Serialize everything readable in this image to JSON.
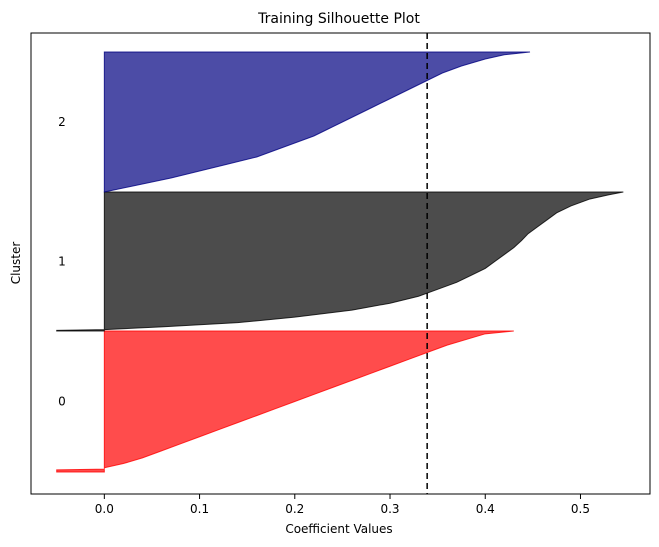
{
  "chart_data": {
    "type": "area",
    "title": "Training Silhouette Plot",
    "xlabel": "Coefficient Values",
    "ylabel": "Cluster",
    "xlim": [
      -0.077,
      0.573
    ],
    "xticks": [
      "0.0",
      "0.1",
      "0.2",
      "0.3",
      "0.4",
      "0.5"
    ],
    "xtick_values": [
      0.0,
      0.1,
      0.2,
      0.3,
      0.4,
      0.5
    ],
    "grid": false,
    "mean_line": {
      "value": 0.339,
      "style": "dashed",
      "color": "#000000"
    },
    "clusters": [
      {
        "label": "0",
        "color": "#ff0000",
        "min": -0.05,
        "max": 0.43,
        "profile": [
          [
            0.0,
            0.43
          ],
          [
            0.02,
            0.4
          ],
          [
            0.05,
            0.385
          ],
          [
            0.1,
            0.36
          ],
          [
            0.15,
            0.34
          ],
          [
            0.2,
            0.32
          ],
          [
            0.25,
            0.3
          ],
          [
            0.3,
            0.28
          ],
          [
            0.35,
            0.26
          ],
          [
            0.4,
            0.24
          ],
          [
            0.45,
            0.22
          ],
          [
            0.5,
            0.2
          ],
          [
            0.55,
            0.18
          ],
          [
            0.6,
            0.16
          ],
          [
            0.65,
            0.14
          ],
          [
            0.7,
            0.12
          ],
          [
            0.75,
            0.1
          ],
          [
            0.8,
            0.08
          ],
          [
            0.85,
            0.06
          ],
          [
            0.9,
            0.04
          ],
          [
            0.94,
            0.02
          ],
          [
            0.97,
            0.0
          ],
          [
            0.98,
            0.0
          ],
          [
            0.985,
            -0.05
          ],
          [
            1.0,
            -0.05
          ]
        ]
      },
      {
        "label": "1",
        "color": "#000000",
        "min": -0.05,
        "max": 0.545,
        "profile": [
          [
            0.0,
            0.545
          ],
          [
            0.02,
            0.53
          ],
          [
            0.05,
            0.51
          ],
          [
            0.1,
            0.49
          ],
          [
            0.15,
            0.475
          ],
          [
            0.2,
            0.465
          ],
          [
            0.25,
            0.455
          ],
          [
            0.3,
            0.445
          ],
          [
            0.35,
            0.438
          ],
          [
            0.4,
            0.43
          ],
          [
            0.45,
            0.42
          ],
          [
            0.5,
            0.41
          ],
          [
            0.55,
            0.4
          ],
          [
            0.6,
            0.385
          ],
          [
            0.65,
            0.37
          ],
          [
            0.7,
            0.35
          ],
          [
            0.75,
            0.33
          ],
          [
            0.8,
            0.3
          ],
          [
            0.85,
            0.26
          ],
          [
            0.9,
            0.2
          ],
          [
            0.94,
            0.14
          ],
          [
            0.97,
            0.06
          ],
          [
            0.99,
            0.0
          ],
          [
            0.995,
            -0.05
          ],
          [
            1.0,
            -0.05
          ]
        ]
      },
      {
        "label": "2",
        "color": "#000080",
        "min": 0.0,
        "max": 0.447,
        "profile": [
          [
            0.0,
            0.447
          ],
          [
            0.02,
            0.42
          ],
          [
            0.05,
            0.4
          ],
          [
            0.1,
            0.375
          ],
          [
            0.15,
            0.355
          ],
          [
            0.2,
            0.34
          ],
          [
            0.25,
            0.325
          ],
          [
            0.3,
            0.31
          ],
          [
            0.35,
            0.295
          ],
          [
            0.4,
            0.28
          ],
          [
            0.45,
            0.265
          ],
          [
            0.5,
            0.25
          ],
          [
            0.55,
            0.235
          ],
          [
            0.6,
            0.22
          ],
          [
            0.65,
            0.2
          ],
          [
            0.7,
            0.18
          ],
          [
            0.75,
            0.16
          ],
          [
            0.8,
            0.13
          ],
          [
            0.85,
            0.1
          ],
          [
            0.9,
            0.07
          ],
          [
            0.95,
            0.035
          ],
          [
            1.0,
            0.0
          ]
        ]
      }
    ]
  }
}
